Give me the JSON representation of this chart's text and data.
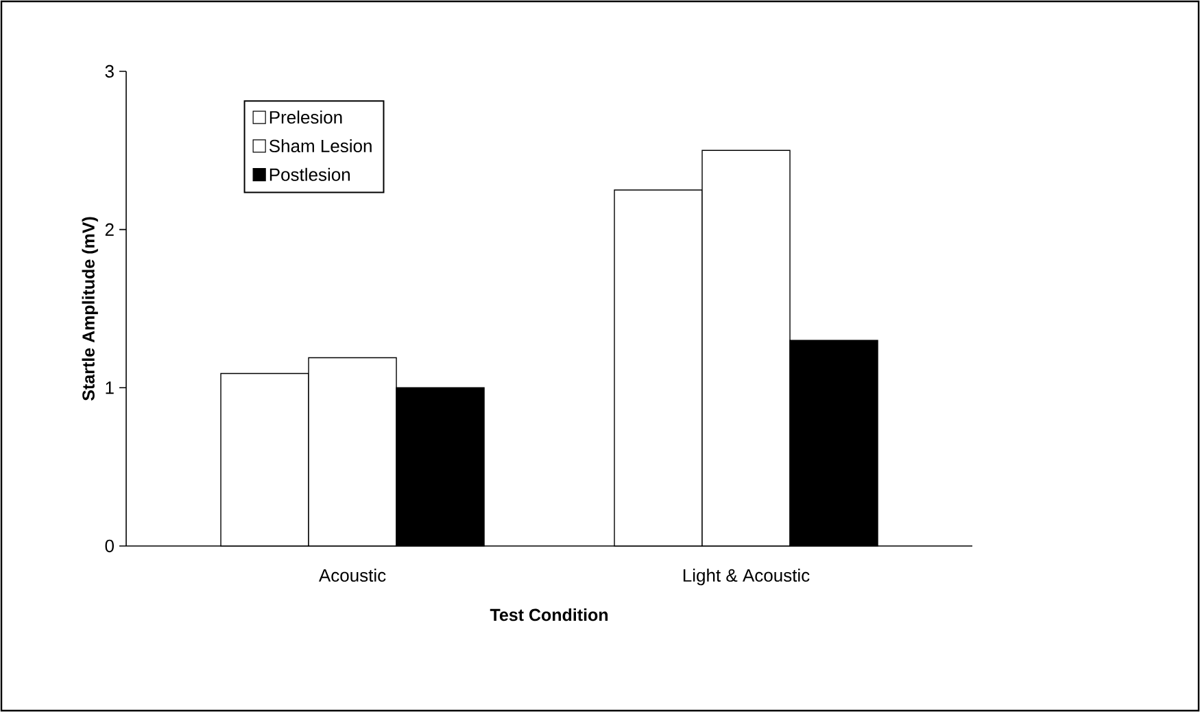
{
  "chart_data": {
    "type": "bar",
    "xlabel": "Test Condition",
    "ylabel": "Startle Amplitude (mV)",
    "categories": [
      "Acoustic",
      "Light & Acoustic"
    ],
    "series": [
      {
        "name": "Prelesion",
        "color": "#ffffff",
        "values": [
          1.09,
          2.25
        ]
      },
      {
        "name": "Sham Lesion",
        "color": "#ffffff",
        "values": [
          1.19,
          2.5
        ]
      },
      {
        "name": "Postlesion",
        "color": "#000000",
        "values": [
          1.0,
          1.3
        ]
      }
    ],
    "ylim": [
      0,
      3
    ],
    "yticks": [
      0,
      1,
      2,
      3
    ],
    "legend": "top left"
  }
}
